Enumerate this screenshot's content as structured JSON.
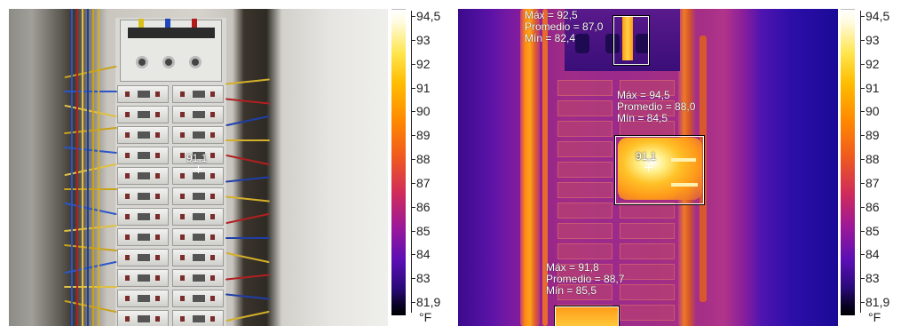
{
  "photo": {
    "spot_label": "91,1"
  },
  "thermal": {
    "spot_label": "91,1",
    "regions": [
      {
        "max": "Máx = 92,5",
        "avg": "Promedio = 87,0",
        "min": "Mín = 82,4"
      },
      {
        "max": "Máx = 94,5",
        "avg": "Promedio = 88,0",
        "min": "Mín = 84,5"
      },
      {
        "max": "Máx = 91,8",
        "avg": "Promedio = 88,7",
        "min": "Mín = 85,5"
      }
    ]
  },
  "scale": {
    "ticks": [
      "94,5",
      "93",
      "92",
      "91",
      "90",
      "89",
      "88",
      "87",
      "86",
      "85",
      "84",
      "83",
      "81,9"
    ],
    "unit": "°F"
  },
  "colors": {
    "overlay_text": "#ffffff",
    "scale_text": "#222222"
  }
}
